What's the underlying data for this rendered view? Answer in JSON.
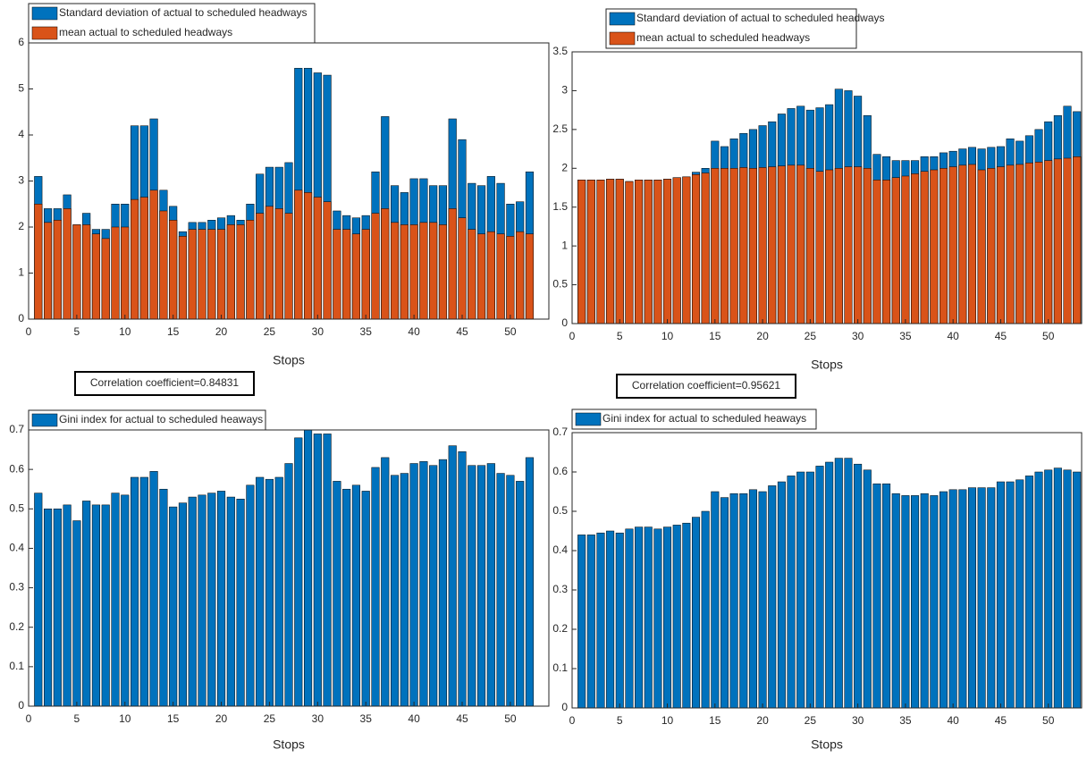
{
  "chart_data": [
    {
      "type": "bar",
      "xlabel": "Stops",
      "x": [
        1,
        2,
        3,
        4,
        5,
        6,
        7,
        8,
        9,
        10,
        11,
        12,
        13,
        14,
        15,
        16,
        17,
        18,
        19,
        20,
        21,
        22,
        23,
        24,
        25,
        26,
        27,
        28,
        29,
        30,
        31,
        32,
        33,
        34,
        35,
        36,
        37,
        38,
        39,
        40,
        41,
        42,
        43,
        44,
        45,
        46,
        47,
        48,
        49,
        50,
        51,
        52
      ],
      "series": [
        {
          "name": "Standard deviation of actual to scheduled headways",
          "color": "#0072BD",
          "values": [
            3.1,
            2.4,
            2.4,
            2.7,
            2.05,
            2.3,
            1.95,
            1.95,
            2.5,
            2.5,
            4.2,
            4.2,
            4.35,
            2.8,
            2.45,
            1.9,
            2.1,
            2.1,
            2.15,
            2.2,
            2.25,
            2.15,
            2.5,
            3.15,
            3.3,
            3.3,
            3.4,
            5.45,
            5.45,
            5.35,
            5.3,
            2.35,
            2.25,
            2.2,
            2.25,
            3.2,
            4.4,
            2.9,
            2.75,
            3.05,
            3.05,
            2.9,
            2.9,
            4.35,
            3.9,
            2.95,
            2.9,
            3.1,
            2.95,
            2.5,
            2.55,
            3.2
          ]
        },
        {
          "name": "mean actual to scheduled headways",
          "color": "#D95319",
          "values": [
            2.5,
            2.1,
            2.15,
            2.4,
            2.05,
            2.05,
            1.85,
            1.75,
            2.0,
            2.0,
            2.6,
            2.65,
            2.8,
            2.35,
            2.15,
            1.8,
            1.95,
            1.95,
            1.95,
            1.95,
            2.05,
            2.05,
            2.15,
            2.3,
            2.45,
            2.4,
            2.3,
            2.8,
            2.75,
            2.65,
            2.55,
            1.95,
            1.95,
            1.85,
            1.95,
            2.3,
            2.4,
            2.1,
            2.05,
            2.05,
            2.1,
            2.1,
            2.05,
            2.4,
            2.2,
            1.95,
            1.85,
            1.9,
            1.85,
            1.8,
            1.9,
            1.85
          ]
        }
      ],
      "xlim": [
        0,
        54
      ],
      "xticks": [
        0,
        5,
        10,
        15,
        20,
        25,
        30,
        35,
        40,
        45,
        50
      ],
      "ylim": [
        0,
        6
      ],
      "yticks": [
        0,
        1,
        2,
        3,
        4,
        5,
        6
      ],
      "grid": false,
      "legend": "northwest",
      "annotation": "Correlation coefficient=0.84831"
    },
    {
      "type": "bar",
      "xlabel": "Stops",
      "x": [
        1,
        2,
        3,
        4,
        5,
        6,
        7,
        8,
        9,
        10,
        11,
        12,
        13,
        14,
        15,
        16,
        17,
        18,
        19,
        20,
        21,
        22,
        23,
        24,
        25,
        26,
        27,
        28,
        29,
        30,
        31,
        32,
        33,
        34,
        35,
        36,
        37,
        38,
        39,
        40,
        41,
        42,
        43,
        44,
        45,
        46,
        47,
        48,
        49,
        50,
        51,
        52,
        53
      ],
      "series": [
        {
          "name": "Standard deviation of actual to scheduled headways",
          "color": "#0072BD",
          "values": [
            1.85,
            1.85,
            1.85,
            1.86,
            1.86,
            1.83,
            1.85,
            1.85,
            1.85,
            1.86,
            1.88,
            1.89,
            1.95,
            2.0,
            2.35,
            2.28,
            2.38,
            2.45,
            2.5,
            2.55,
            2.6,
            2.7,
            2.77,
            2.8,
            2.75,
            2.78,
            2.82,
            3.02,
            3.0,
            2.93,
            2.68,
            2.18,
            2.15,
            2.1,
            2.1,
            2.1,
            2.15,
            2.15,
            2.2,
            2.22,
            2.25,
            2.27,
            2.25,
            2.27,
            2.28,
            2.38,
            2.35,
            2.42,
            2.5,
            2.6,
            2.68,
            2.8,
            2.73
          ]
        },
        {
          "name": "mean actual to scheduled headways",
          "color": "#D95319",
          "values": [
            1.85,
            1.85,
            1.85,
            1.86,
            1.86,
            1.83,
            1.85,
            1.85,
            1.85,
            1.86,
            1.88,
            1.89,
            1.92,
            1.94,
            2.0,
            2.0,
            2.0,
            2.01,
            2.0,
            2.01,
            2.02,
            2.03,
            2.04,
            2.04,
            2.0,
            1.96,
            1.98,
            2.0,
            2.02,
            2.02,
            2.0,
            1.85,
            1.85,
            1.88,
            1.9,
            1.93,
            1.96,
            1.98,
            2.0,
            2.02,
            2.04,
            2.05,
            1.98,
            2.0,
            2.02,
            2.04,
            2.05,
            2.07,
            2.08,
            2.1,
            2.12,
            2.13,
            2.15
          ]
        }
      ],
      "xlim": [
        0,
        53.5
      ],
      "xticks": [
        0,
        5,
        10,
        15,
        20,
        25,
        30,
        35,
        40,
        45,
        50
      ],
      "ylim": [
        0,
        3.5
      ],
      "yticks": [
        0,
        0.5,
        1,
        1.5,
        2,
        2.5,
        3,
        3.5
      ],
      "grid": false,
      "legend": "northwest",
      "annotation": "Correlation coefficient=0.95621"
    },
    {
      "type": "bar",
      "xlabel": "Stops",
      "x": [
        1,
        2,
        3,
        4,
        5,
        6,
        7,
        8,
        9,
        10,
        11,
        12,
        13,
        14,
        15,
        16,
        17,
        18,
        19,
        20,
        21,
        22,
        23,
        24,
        25,
        26,
        27,
        28,
        29,
        30,
        31,
        32,
        33,
        34,
        35,
        36,
        37,
        38,
        39,
        40,
        41,
        42,
        43,
        44,
        45,
        46,
        47,
        48,
        49,
        50,
        51,
        52
      ],
      "series": [
        {
          "name": "Gini index for actual to scheduled heaways",
          "color": "#0072BD",
          "values": [
            0.54,
            0.5,
            0.5,
            0.51,
            0.47,
            0.52,
            0.51,
            0.51,
            0.54,
            0.535,
            0.58,
            0.58,
            0.595,
            0.55,
            0.505,
            0.515,
            0.53,
            0.535,
            0.54,
            0.545,
            0.53,
            0.525,
            0.56,
            0.58,
            0.575,
            0.58,
            0.615,
            0.68,
            0.7,
            0.69,
            0.69,
            0.57,
            0.55,
            0.56,
            0.545,
            0.605,
            0.63,
            0.585,
            0.59,
            0.615,
            0.62,
            0.61,
            0.625,
            0.66,
            0.645,
            0.61,
            0.61,
            0.615,
            0.59,
            0.585,
            0.57,
            0.63
          ]
        }
      ],
      "xlim": [
        0,
        54
      ],
      "xticks": [
        0,
        5,
        10,
        15,
        20,
        25,
        30,
        35,
        40,
        45,
        50
      ],
      "ylim": [
        0,
        0.7
      ],
      "yticks": [
        0,
        0.1,
        0.2,
        0.3,
        0.4,
        0.5,
        0.6,
        0.7
      ],
      "grid": false,
      "legend": "northwest"
    },
    {
      "type": "bar",
      "xlabel": "Stops",
      "x": [
        1,
        2,
        3,
        4,
        5,
        6,
        7,
        8,
        9,
        10,
        11,
        12,
        13,
        14,
        15,
        16,
        17,
        18,
        19,
        20,
        21,
        22,
        23,
        24,
        25,
        26,
        27,
        28,
        29,
        30,
        31,
        32,
        33,
        34,
        35,
        36,
        37,
        38,
        39,
        40,
        41,
        42,
        43,
        44,
        45,
        46,
        47,
        48,
        49,
        50,
        51,
        52,
        53
      ],
      "series": [
        {
          "name": "Gini index for actual to scheduled heaways",
          "color": "#0072BD",
          "values": [
            0.44,
            0.44,
            0.445,
            0.45,
            0.445,
            0.455,
            0.46,
            0.46,
            0.455,
            0.46,
            0.465,
            0.47,
            0.485,
            0.5,
            0.55,
            0.535,
            0.545,
            0.545,
            0.555,
            0.55,
            0.565,
            0.575,
            0.59,
            0.6,
            0.6,
            0.615,
            0.625,
            0.635,
            0.635,
            0.62,
            0.605,
            0.57,
            0.57,
            0.545,
            0.54,
            0.54,
            0.545,
            0.54,
            0.55,
            0.555,
            0.555,
            0.56,
            0.56,
            0.56,
            0.575,
            0.575,
            0.58,
            0.59,
            0.6,
            0.605,
            0.61,
            0.605,
            0.6
          ]
        }
      ],
      "xlim": [
        0,
        53.5
      ],
      "xticks": [
        0,
        5,
        10,
        15,
        20,
        25,
        30,
        35,
        40,
        45,
        50
      ],
      "ylim": [
        0,
        0.7
      ],
      "yticks": [
        0,
        0.1,
        0.2,
        0.3,
        0.4,
        0.5,
        0.6,
        0.7
      ],
      "grid": false,
      "legend": "northwest"
    }
  ]
}
